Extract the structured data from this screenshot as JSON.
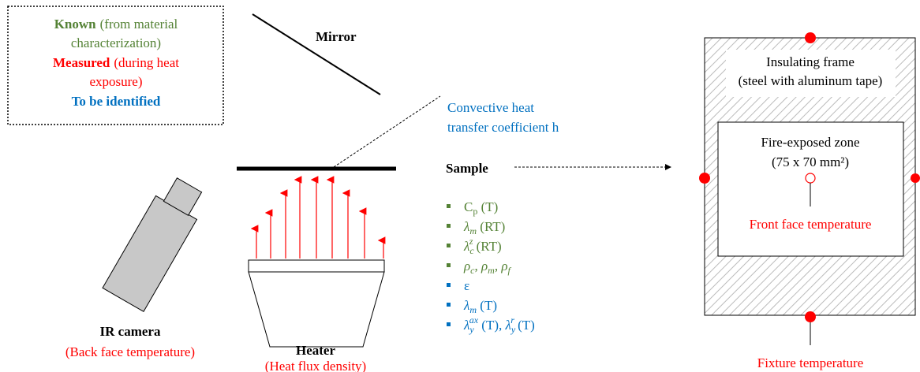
{
  "legend": {
    "known": {
      "label": "Known",
      "note": [
        "(from material",
        "characterization)"
      ]
    },
    "measured": {
      "label": "Measured",
      "note": [
        "(during heat",
        "exposure)"
      ]
    },
    "identified": {
      "label": "To be identified"
    }
  },
  "mirror": "Mirror",
  "convective": [
    "Convective heat",
    "transfer coefficient h"
  ],
  "sample": {
    "label": "Sample",
    "known": [
      [
        "C",
        "p",
        " (T)"
      ],
      [
        "λ",
        "m",
        " (RT)"
      ],
      [
        "λ",
        "c",
        "z",
        " (RT)"
      ],
      [
        "ρ",
        "c",
        ", ",
        "ρ",
        "m",
        ", ",
        "ρ",
        "f"
      ]
    ],
    "identified": [
      [
        "ε"
      ],
      [
        "λ",
        "m",
        " (T)"
      ],
      [
        "λ",
        "y",
        "ax",
        " (T), ",
        "λ",
        "y",
        "r",
        " (T)"
      ]
    ]
  },
  "camera": {
    "label": "IR camera",
    "measure": "(Back face temperature)"
  },
  "heater": {
    "label": "Heater",
    "measure": "(Heat flux density)"
  },
  "frame": {
    "label": [
      "Insulating frame",
      "(steel with aluminum tape)"
    ],
    "zone": [
      "Fire-exposed zone",
      "(75 x 70 mm²)"
    ],
    "front": "Front face temperature",
    "fixture": "Fixture temperature"
  }
}
